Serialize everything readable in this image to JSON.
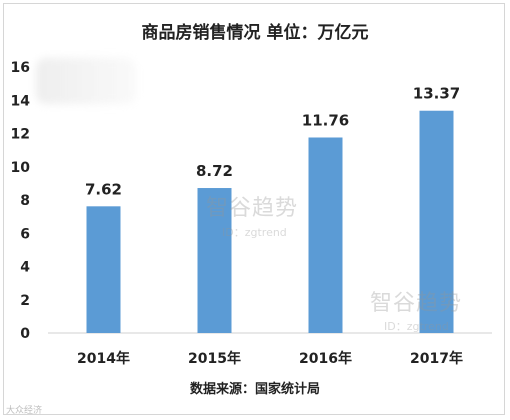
{
  "chart_data": {
    "type": "bar",
    "title": "商品房销售情况  单位：万亿元",
    "categories": [
      "2014年",
      "2015年",
      "2016年",
      "2017年"
    ],
    "values": [
      7.62,
      8.72,
      11.76,
      13.37
    ],
    "value_labels": [
      "7.62",
      "8.72",
      "11.76",
      "13.37"
    ],
    "y_ticks": [
      "0",
      "2",
      "4",
      "6",
      "8",
      "10",
      "12",
      "14",
      "16"
    ],
    "ylim": [
      0,
      16
    ],
    "grid": false,
    "legend": "none",
    "bar_color": "#5b9bd5",
    "source": "数据来源：国家统计局"
  },
  "watermark": {
    "main": "智谷趋势",
    "sub": "ID：zgtrend",
    "corner": "大众经济"
  }
}
